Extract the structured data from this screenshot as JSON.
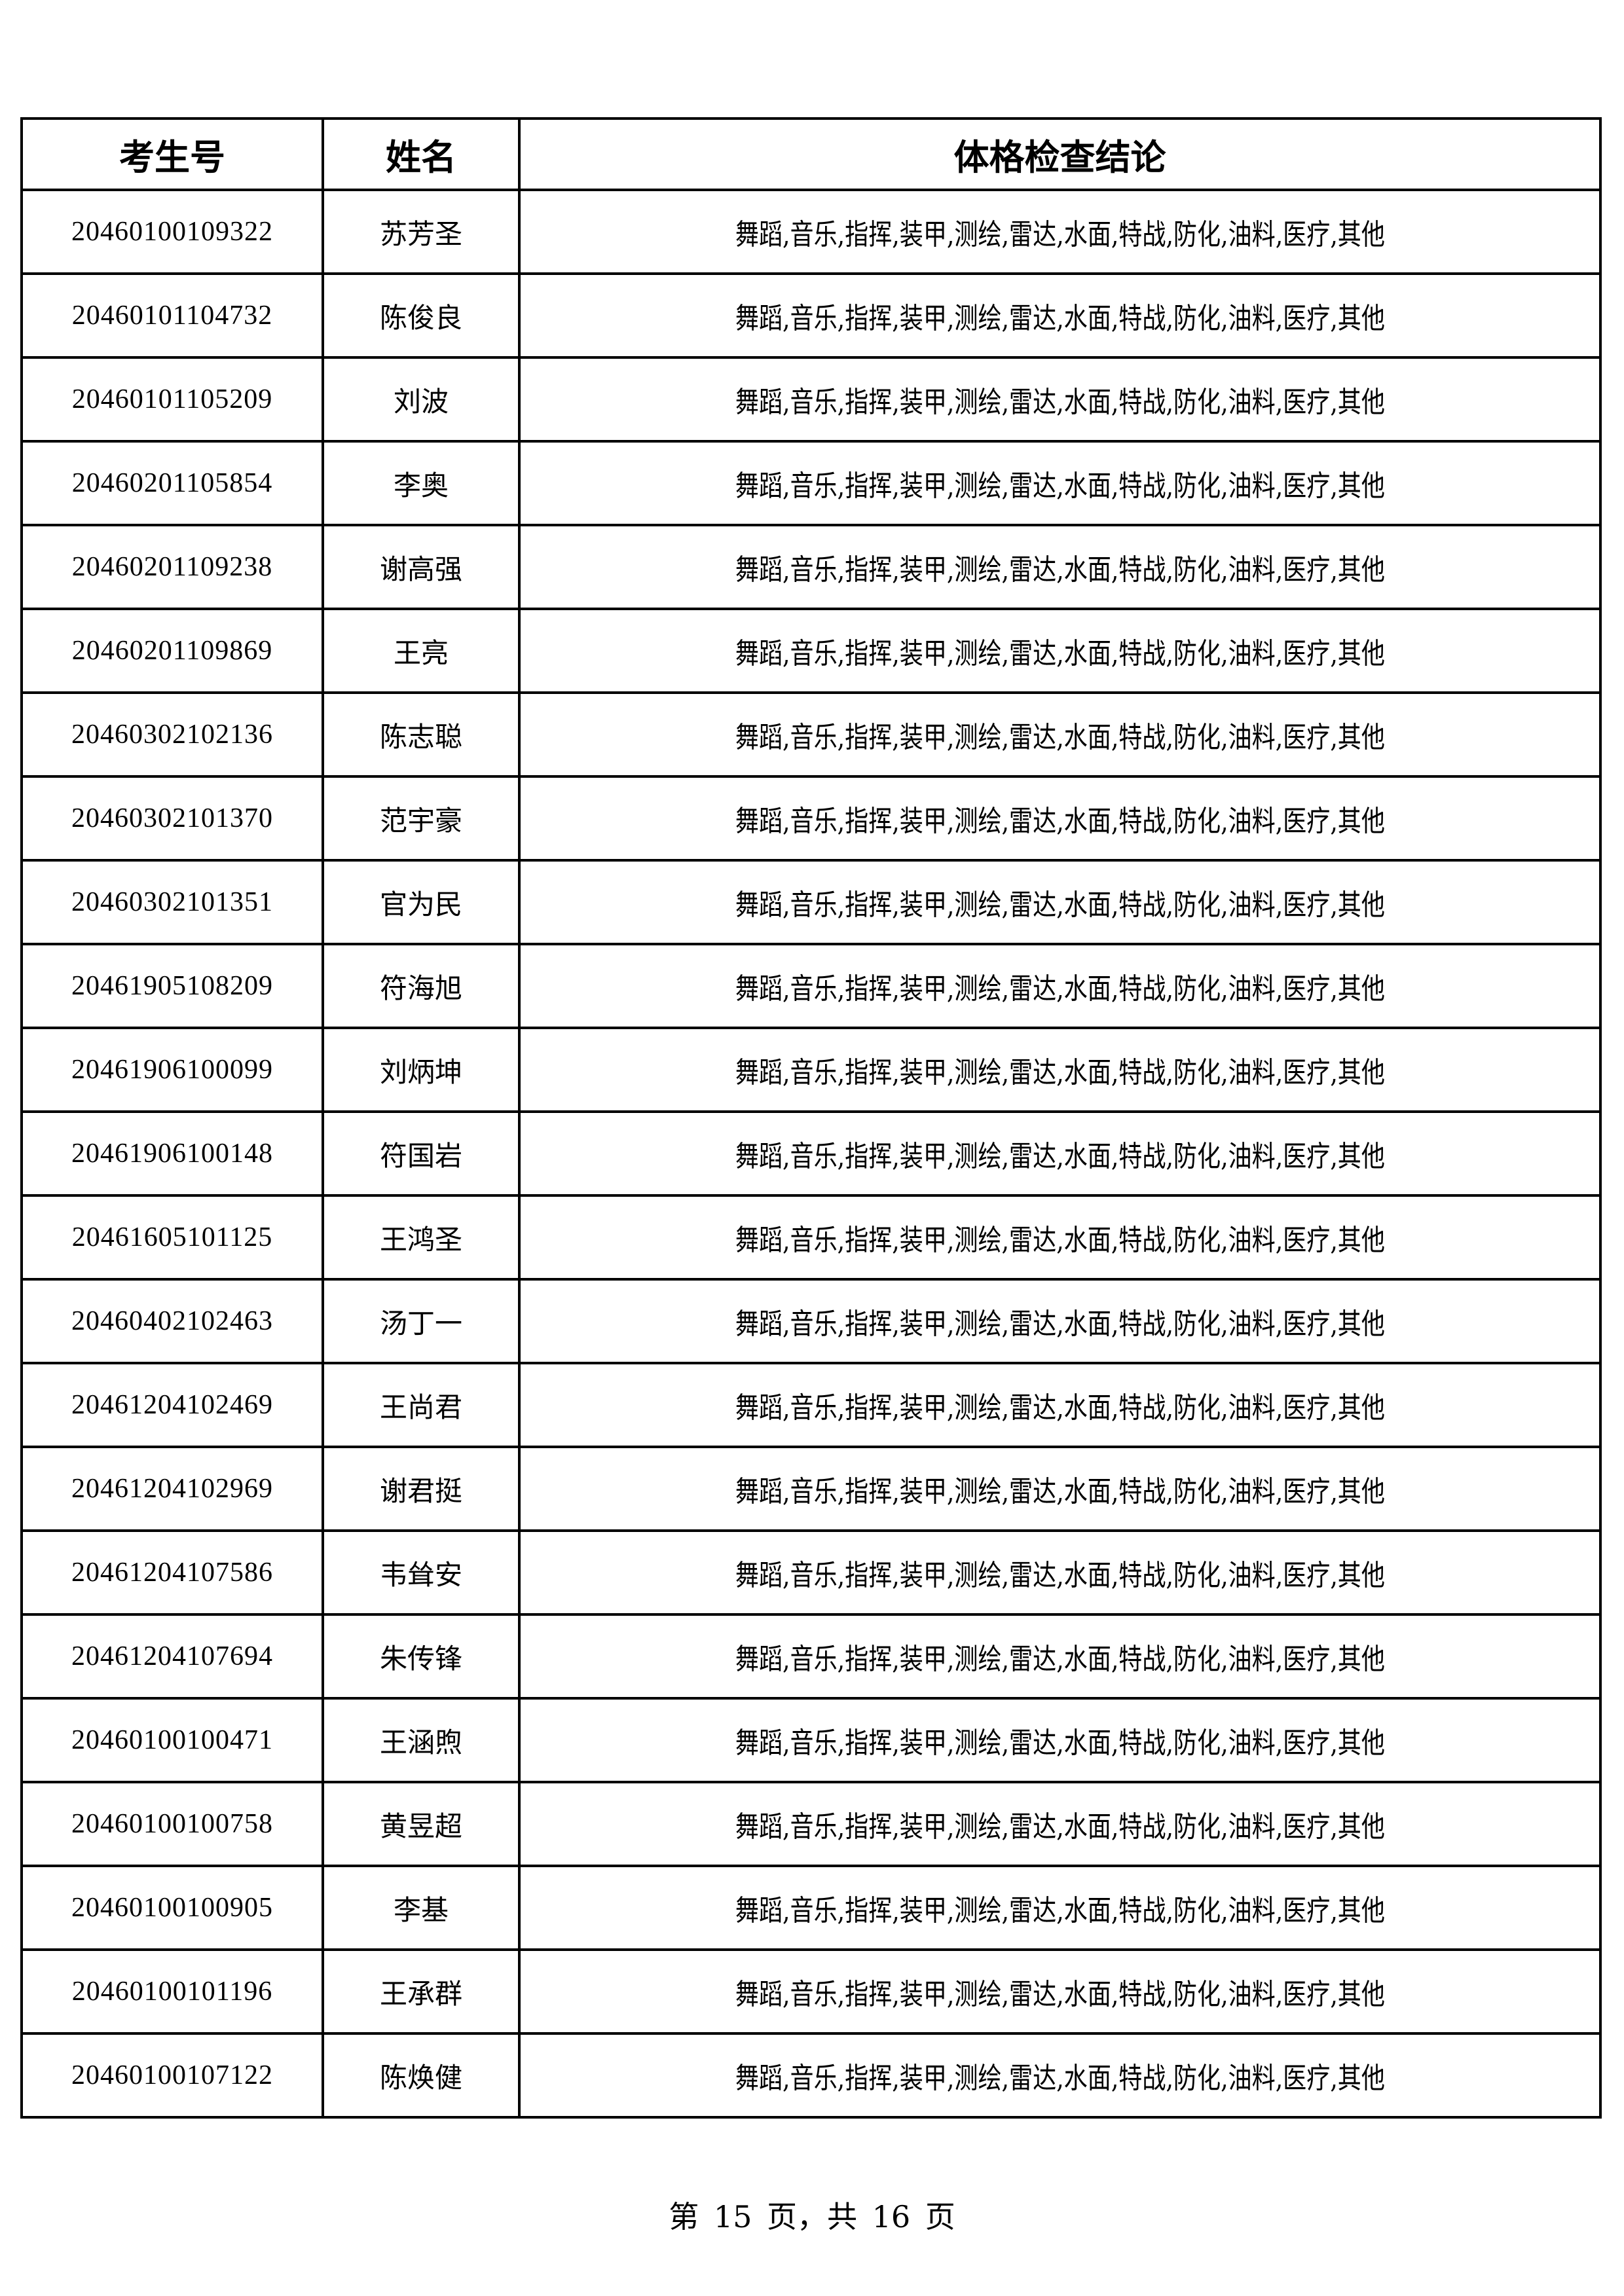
{
  "table": {
    "headers": [
      "考生号",
      "姓名",
      "体格检查结论"
    ],
    "rows": [
      {
        "id": "20460100109322",
        "name": "苏芳圣",
        "conclusion": "舞蹈,音乐,指挥,装甲,测绘,雷达,水面,特战,防化,油料,医疗,其他"
      },
      {
        "id": "20460101104732",
        "name": "陈俊良",
        "conclusion": "舞蹈,音乐,指挥,装甲,测绘,雷达,水面,特战,防化,油料,医疗,其他"
      },
      {
        "id": "20460101105209",
        "name": "刘波",
        "conclusion": "舞蹈,音乐,指挥,装甲,测绘,雷达,水面,特战,防化,油料,医疗,其他"
      },
      {
        "id": "20460201105854",
        "name": "李奥",
        "conclusion": "舞蹈,音乐,指挥,装甲,测绘,雷达,水面,特战,防化,油料,医疗,其他"
      },
      {
        "id": "20460201109238",
        "name": "谢高强",
        "conclusion": "舞蹈,音乐,指挥,装甲,测绘,雷达,水面,特战,防化,油料,医疗,其他"
      },
      {
        "id": "20460201109869",
        "name": "王亮",
        "conclusion": "舞蹈,音乐,指挥,装甲,测绘,雷达,水面,特战,防化,油料,医疗,其他"
      },
      {
        "id": "20460302102136",
        "name": "陈志聪",
        "conclusion": "舞蹈,音乐,指挥,装甲,测绘,雷达,水面,特战,防化,油料,医疗,其他"
      },
      {
        "id": "20460302101370",
        "name": "范宇豪",
        "conclusion": "舞蹈,音乐,指挥,装甲,测绘,雷达,水面,特战,防化,油料,医疗,其他"
      },
      {
        "id": "20460302101351",
        "name": "官为民",
        "conclusion": "舞蹈,音乐,指挥,装甲,测绘,雷达,水面,特战,防化,油料,医疗,其他"
      },
      {
        "id": "20461905108209",
        "name": "符海旭",
        "conclusion": "舞蹈,音乐,指挥,装甲,测绘,雷达,水面,特战,防化,油料,医疗,其他"
      },
      {
        "id": "20461906100099",
        "name": "刘炳坤",
        "conclusion": "舞蹈,音乐,指挥,装甲,测绘,雷达,水面,特战,防化,油料,医疗,其他"
      },
      {
        "id": "20461906100148",
        "name": "符国岩",
        "conclusion": "舞蹈,音乐,指挥,装甲,测绘,雷达,水面,特战,防化,油料,医疗,其他"
      },
      {
        "id": "20461605101125",
        "name": "王鸿圣",
        "conclusion": "舞蹈,音乐,指挥,装甲,测绘,雷达,水面,特战,防化,油料,医疗,其他"
      },
      {
        "id": "20460402102463",
        "name": "汤丁一",
        "conclusion": "舞蹈,音乐,指挥,装甲,测绘,雷达,水面,特战,防化,油料,医疗,其他"
      },
      {
        "id": "20461204102469",
        "name": "王尚君",
        "conclusion": "舞蹈,音乐,指挥,装甲,测绘,雷达,水面,特战,防化,油料,医疗,其他"
      },
      {
        "id": "20461204102969",
        "name": "谢君挺",
        "conclusion": "舞蹈,音乐,指挥,装甲,测绘,雷达,水面,特战,防化,油料,医疗,其他"
      },
      {
        "id": "20461204107586",
        "name": "韦耸安",
        "conclusion": "舞蹈,音乐,指挥,装甲,测绘,雷达,水面,特战,防化,油料,医疗,其他"
      },
      {
        "id": "20461204107694",
        "name": "朱传锋",
        "conclusion": "舞蹈,音乐,指挥,装甲,测绘,雷达,水面,特战,防化,油料,医疗,其他"
      },
      {
        "id": "20460100100471",
        "name": "王涵煦",
        "conclusion": "舞蹈,音乐,指挥,装甲,测绘,雷达,水面,特战,防化,油料,医疗,其他"
      },
      {
        "id": "20460100100758",
        "name": "黄昱超",
        "conclusion": "舞蹈,音乐,指挥,装甲,测绘,雷达,水面,特战,防化,油料,医疗,其他"
      },
      {
        "id": "20460100100905",
        "name": "李基",
        "conclusion": "舞蹈,音乐,指挥,装甲,测绘,雷达,水面,特战,防化,油料,医疗,其他"
      },
      {
        "id": "20460100101196",
        "name": "王承群",
        "conclusion": "舞蹈,音乐,指挥,装甲,测绘,雷达,水面,特战,防化,油料,医疗,其他"
      },
      {
        "id": "20460100107122",
        "name": "陈焕健",
        "conclusion": "舞蹈,音乐,指挥,装甲,测绘,雷达,水面,特战,防化,油料,医疗,其他"
      }
    ]
  },
  "footer": {
    "page_label": "第 15 页，共 16 页"
  }
}
